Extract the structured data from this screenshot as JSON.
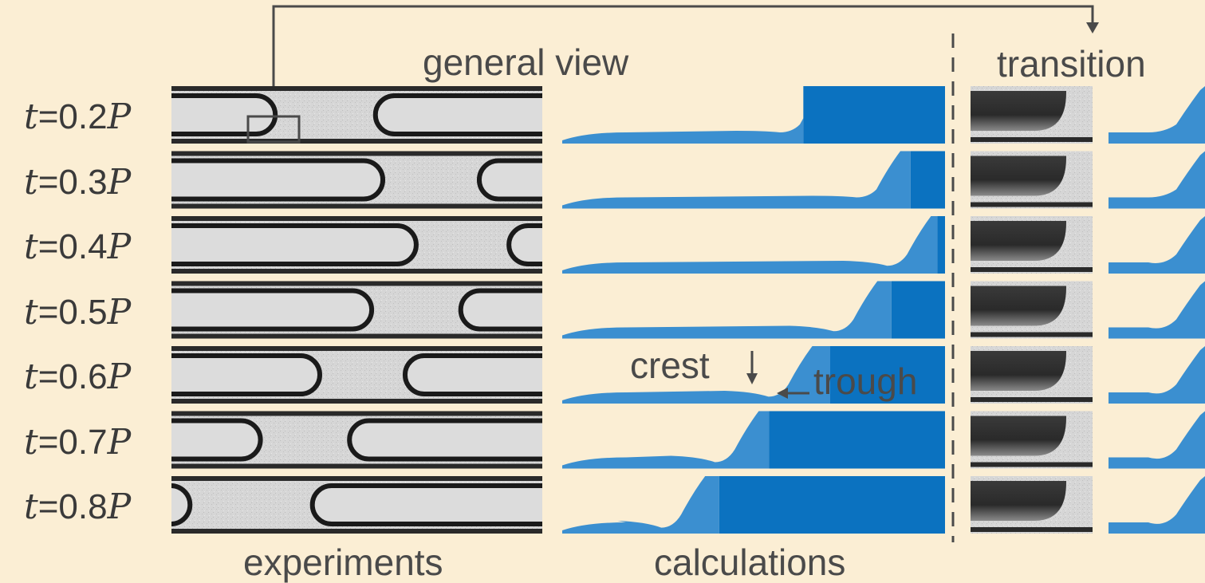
{
  "labels": {
    "general_view": "general view",
    "transition": "transition",
    "experiments": "experiments",
    "calculations": "calculations",
    "crest": "crest",
    "trough": "trough"
  },
  "rows": [
    {
      "t_symbol": "t",
      "eq": "=",
      "value": "0.2",
      "p_symbol": "P",
      "exp_bubbles": [
        [
          0.0,
          0.28
        ],
        [
          0.55,
          1.0
        ]
      ],
      "calc_front": 0.6,
      "calc_fill": 0.63,
      "dip": 0.0
    },
    {
      "t_symbol": "t",
      "eq": "=",
      "value": "0.3",
      "p_symbol": "P",
      "exp_bubbles": [
        [
          0.0,
          0.57
        ],
        [
          0.83,
          1.0
        ]
      ],
      "calc_front": 0.8,
      "calc_fill": 0.91,
      "dip": 0.0
    },
    {
      "t_symbol": "t",
      "eq": "=",
      "value": "0.4",
      "p_symbol": "P",
      "exp_bubbles": [
        [
          0.0,
          0.66
        ],
        [
          0.91,
          1.0
        ]
      ],
      "calc_front": 0.88,
      "calc_fill": 0.98,
      "dip": 0.35
    },
    {
      "t_symbol": "t",
      "eq": "=",
      "value": "0.5",
      "p_symbol": "P",
      "exp_bubbles": [
        [
          0.0,
          0.54
        ],
        [
          0.78,
          1.0
        ]
      ],
      "calc_front": 0.74,
      "calc_fill": 0.86,
      "dip": 0.4
    },
    {
      "t_symbol": "t",
      "eq": "=",
      "value": "0.6",
      "p_symbol": "P",
      "exp_bubbles": [
        [
          0.0,
          0.4
        ],
        [
          0.63,
          1.0
        ]
      ],
      "calc_front": 0.57,
      "calc_fill": 0.7,
      "dip": 0.45
    },
    {
      "t_symbol": "t",
      "eq": "=",
      "value": "0.7",
      "p_symbol": "P",
      "exp_bubbles": [
        [
          0.0,
          0.24
        ],
        [
          0.48,
          1.0
        ]
      ],
      "calc_front": 0.43,
      "calc_fill": 0.54,
      "dip": 0.5
    },
    {
      "t_symbol": "t",
      "eq": "=",
      "value": "0.8",
      "p_symbol": "P",
      "exp_bubbles": [
        [
          0.0,
          0.05
        ],
        [
          0.38,
          1.0
        ]
      ],
      "calc_front": 0.29,
      "calc_fill": 0.41,
      "dip": 0.55
    }
  ],
  "colors": {
    "background": "#fbeed4",
    "liquid_blue": "#3b8fd0",
    "fill_blue": "#0b72c0",
    "line_dark": "#4a4a4a"
  }
}
